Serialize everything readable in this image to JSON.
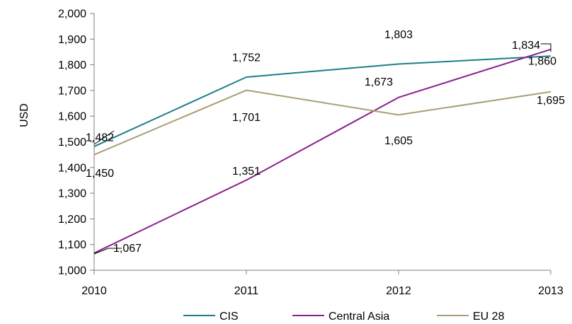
{
  "chart_data": {
    "type": "line",
    "ylabel": "USD",
    "xlabel": "",
    "ylim": [
      1000,
      2000
    ],
    "yticks": [
      "1,000",
      "1,100",
      "1,200",
      "1,300",
      "1,400",
      "1,500",
      "1,600",
      "1,700",
      "1,800",
      "1,900",
      "2,000"
    ],
    "categories": [
      "2010",
      "2011",
      "2012",
      "2013"
    ],
    "legend_position": "bottom",
    "grid": false,
    "series": [
      {
        "name": "CIS",
        "color": "#1b7f8a",
        "values": [
          1482,
          1752,
          1803,
          1834
        ],
        "labels": [
          "1,482",
          "1,752",
          "1,803",
          "1,834"
        ]
      },
      {
        "name": "Central Asia",
        "color": "#8b1f8e",
        "values": [
          1067,
          1351,
          1673,
          1860
        ],
        "labels": [
          "1,067",
          "1,351",
          "1,673",
          "1,860"
        ]
      },
      {
        "name": "EU 28",
        "color": "#a89f74",
        "values": [
          1450,
          1701,
          1605,
          1695
        ],
        "labels": [
          "1,450",
          "1,701",
          "1,605",
          "1,695"
        ]
      }
    ]
  }
}
